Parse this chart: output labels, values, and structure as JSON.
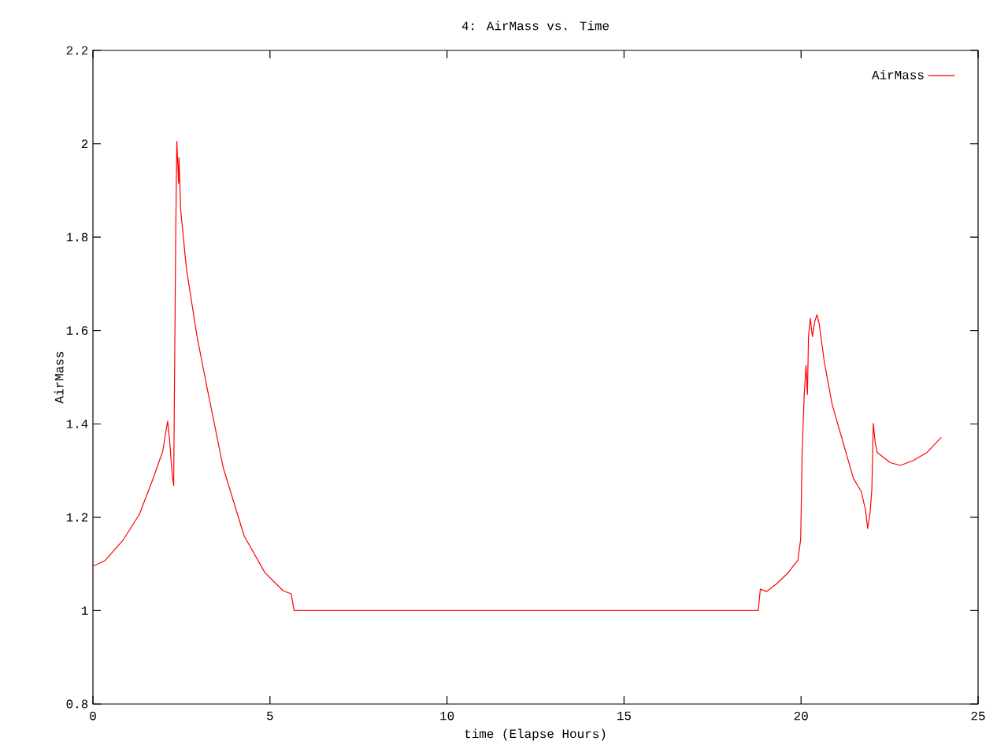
{
  "chart_data": {
    "type": "line",
    "title": "4: AirMass vs. Time",
    "xlabel": "time (Elapse Hours)",
    "ylabel": "AirMass",
    "xlim": [
      0,
      25
    ],
    "ylim": [
      0.8,
      2.2
    ],
    "xticks": [
      0,
      5,
      10,
      15,
      20,
      25
    ],
    "yticks": [
      0.8,
      1,
      1.2,
      1.4,
      1.6,
      1.8,
      2,
      2.2
    ],
    "grid": false,
    "legend": "top right",
    "marker": "none",
    "line_style": "solid",
    "series": [
      {
        "name": "AirMass",
        "color": "#ff0000",
        "x": [
          0,
          0.34,
          0.86,
          1.31,
          1.68,
          1.97,
          2.11,
          2.17,
          2.24,
          2.28,
          2.3,
          2.34,
          2.37,
          2.42,
          2.43,
          2.48,
          2.64,
          2.94,
          3.23,
          3.68,
          4.27,
          4.86,
          5.38,
          5.6,
          5.68,
          10,
          15,
          18.79,
          18.85,
          19.03,
          19.32,
          19.62,
          19.91,
          19.99,
          20.03,
          20.09,
          20.14,
          20.18,
          20.21,
          20.26,
          20.32,
          20.39,
          20.45,
          20.51,
          20.66,
          20.88,
          21.18,
          21.48,
          21.7,
          21.82,
          21.88,
          21.95,
          22.0,
          22.04,
          22.09,
          22.15,
          22.52,
          22.81,
          23.18,
          23.56,
          23.96
        ],
        "values": [
          1.095,
          1.107,
          1.152,
          1.206,
          1.279,
          1.341,
          1.406,
          1.361,
          1.29,
          1.268,
          1.453,
          1.819,
          2.005,
          1.915,
          1.97,
          1.857,
          1.733,
          1.587,
          1.475,
          1.306,
          1.16,
          1.081,
          1.042,
          1.036,
          1.0,
          1.0,
          1.0,
          1.0,
          1.046,
          1.041,
          1.058,
          1.08,
          1.108,
          1.153,
          1.339,
          1.463,
          1.525,
          1.463,
          1.587,
          1.626,
          1.587,
          1.62,
          1.634,
          1.615,
          1.531,
          1.441,
          1.362,
          1.283,
          1.255,
          1.216,
          1.176,
          1.21,
          1.261,
          1.401,
          1.362,
          1.339,
          1.317,
          1.311,
          1.322,
          1.339,
          1.371
        ]
      }
    ]
  }
}
